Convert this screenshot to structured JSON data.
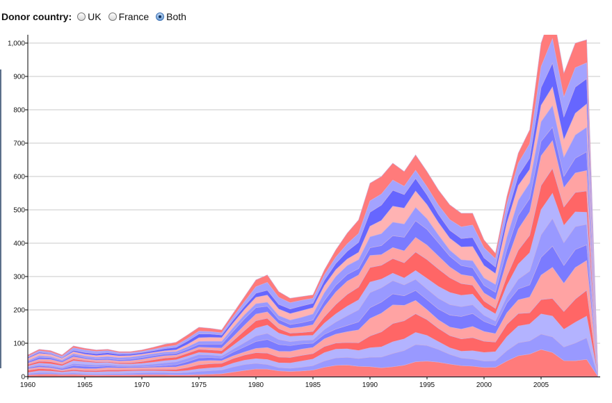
{
  "controls": {
    "label": "Donor country:",
    "options": [
      {
        "label": "UK",
        "selected": false
      },
      {
        "label": "France",
        "selected": false
      },
      {
        "label": "Both",
        "selected": true
      }
    ]
  },
  "colors": {
    "uk": [
      "#ff7b7b",
      "#ff9999",
      "#ffb3b3",
      "#ff6666",
      "#ffa3a3"
    ],
    "france": [
      "#7b7bff",
      "#9999ff",
      "#b3b3ff",
      "#6666ff",
      "#a3a3ff"
    ],
    "grid": "#c8c8c8"
  },
  "chart_data": {
    "type": "area",
    "stacked": true,
    "xlim": [
      1960,
      2010
    ],
    "ylim": [
      0,
      1000
    ],
    "x_ticks": [
      "1960",
      "1965",
      "1970",
      "1975",
      "1980",
      "1985",
      "1990",
      "1995",
      "2000",
      "2005"
    ],
    "y_ticks": [
      "0",
      "100",
      "200",
      "300",
      "400",
      "500",
      "600",
      "700",
      "800",
      "900",
      "1,000"
    ],
    "grid": true,
    "x": [
      1960,
      1961,
      1962,
      1963,
      1964,
      1965,
      1966,
      1967,
      1968,
      1969,
      1970,
      1971,
      1972,
      1973,
      1974,
      1975,
      1976,
      1977,
      1978,
      1979,
      1980,
      1981,
      1982,
      1983,
      1984,
      1985,
      1986,
      1987,
      1988,
      1989,
      1990,
      1991,
      1992,
      1993,
      1994,
      1995,
      1996,
      1997,
      1998,
      1999,
      2000,
      2001,
      2002,
      2003,
      2004,
      2005,
      2006,
      2007,
      2008,
      2009,
      2010
    ],
    "total": [
      65,
      82,
      78,
      65,
      92,
      85,
      80,
      82,
      75,
      75,
      80,
      88,
      97,
      103,
      125,
      148,
      145,
      140,
      190,
      240,
      290,
      305,
      255,
      235,
      240,
      245,
      320,
      380,
      430,
      470,
      580,
      600,
      640,
      615,
      665,
      615,
      560,
      515,
      490,
      490,
      410,
      370,
      540,
      670,
      740,
      1000,
      1100,
      910,
      1000,
      1010,
      0
    ],
    "uk_total": [
      40,
      45,
      45,
      35,
      45,
      40,
      38,
      40,
      38,
      38,
      40,
      45,
      50,
      53,
      65,
      78,
      76,
      73,
      95,
      120,
      150,
      160,
      135,
      125,
      128,
      132,
      175,
      210,
      240,
      262,
      325,
      338,
      360,
      346,
      370,
      340,
      308,
      283,
      270,
      268,
      222,
      198,
      290,
      360,
      398,
      545,
      600,
      495,
      545,
      555,
      0
    ],
    "france_total": [
      25,
      37,
      33,
      30,
      47,
      45,
      42,
      42,
      37,
      37,
      40,
      43,
      47,
      50,
      60,
      70,
      69,
      67,
      95,
      120,
      140,
      145,
      120,
      110,
      112,
      113,
      145,
      170,
      190,
      208,
      255,
      262,
      280,
      269,
      295,
      275,
      252,
      232,
      220,
      222,
      188,
      172,
      250,
      310,
      342,
      455,
      500,
      415,
      455,
      455,
      0
    ]
  }
}
